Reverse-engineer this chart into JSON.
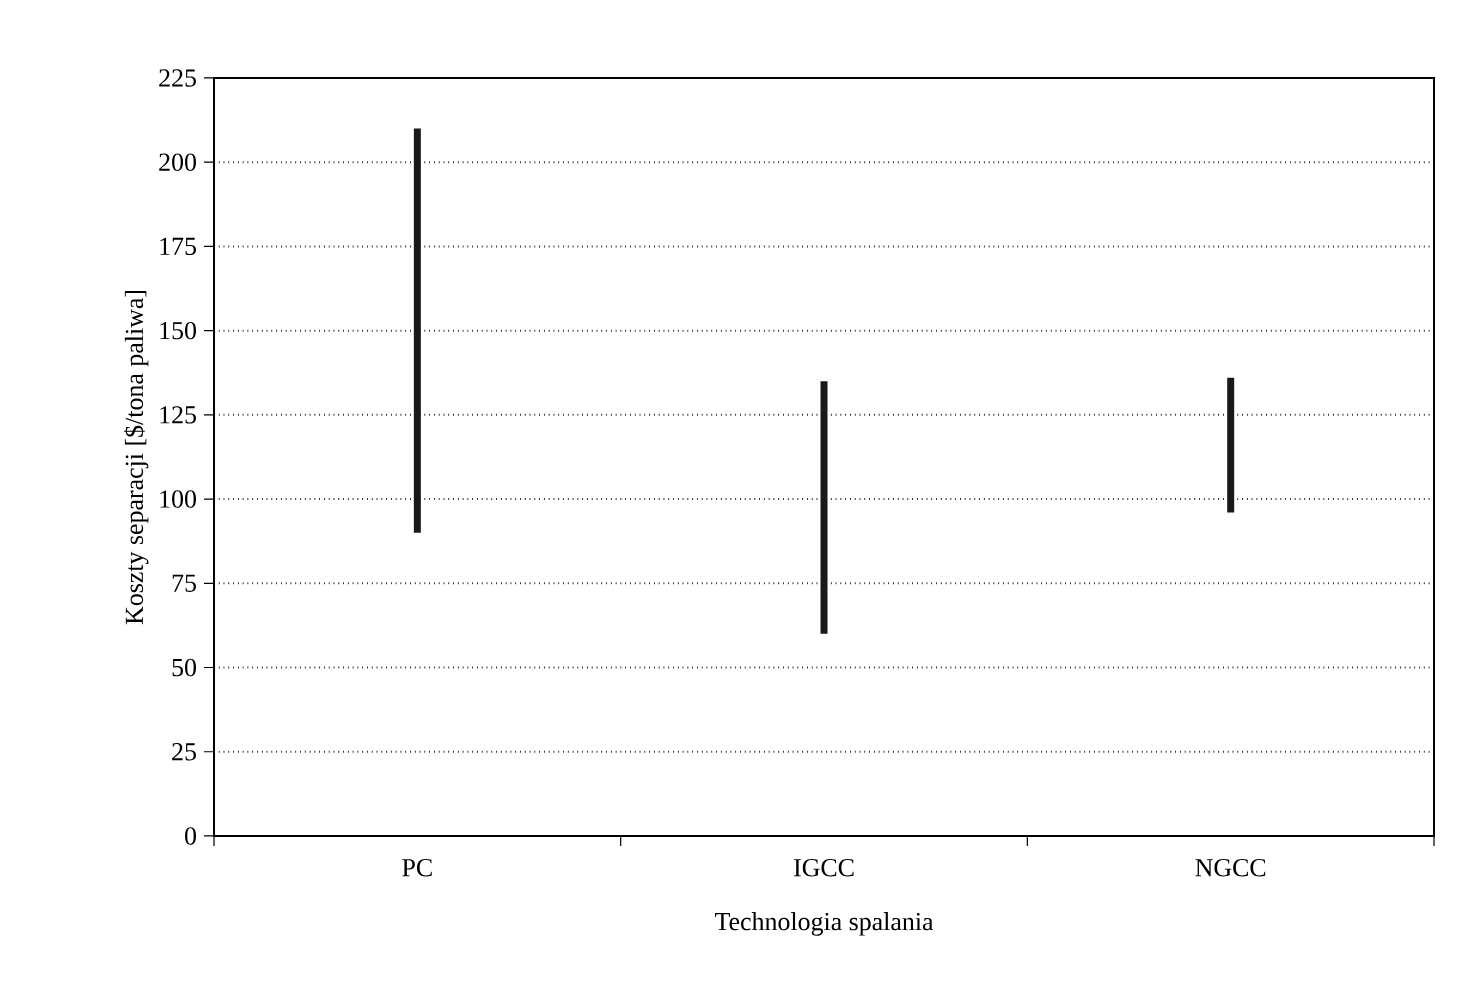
{
  "chart_data": {
    "type": "bar",
    "xlabel": "Technologia spalania",
    "ylabel": "Koszty separacji [$/tona paliwa]",
    "categories": [
      "PC",
      "IGCC",
      "NGCC"
    ],
    "base": [
      90,
      60,
      96
    ],
    "values": [
      120,
      75,
      40
    ],
    "color": "#1a1a1a",
    "ylim": [
      0,
      225
    ],
    "yticks": [
      0,
      25,
      50,
      75,
      100,
      125,
      150,
      175,
      200,
      225
    ],
    "grid": "y"
  }
}
